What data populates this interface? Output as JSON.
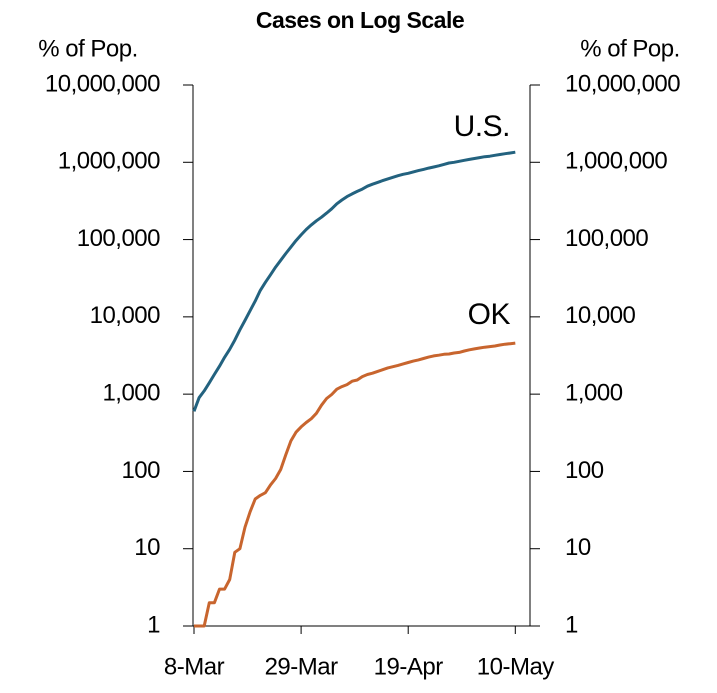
{
  "chart_data": {
    "type": "line",
    "title": "Cases on Log Scale",
    "y_label": "% of Pop.",
    "y2_label": "% of Pop.",
    "annotations": [
      "U.S.",
      "OK"
    ],
    "log_scale": true,
    "grid": false,
    "categories": [
      "8-Mar",
      null,
      null,
      null,
      null,
      null,
      null,
      null,
      null,
      null,
      null,
      null,
      null,
      null,
      null,
      null,
      null,
      null,
      null,
      null,
      null,
      "29-Mar",
      null,
      null,
      null,
      null,
      null,
      null,
      null,
      null,
      null,
      null,
      null,
      null,
      null,
      null,
      null,
      null,
      null,
      null,
      null,
      null,
      "19-Apr",
      null,
      null,
      null,
      null,
      null,
      null,
      null,
      null,
      null,
      null,
      null,
      null,
      null,
      null,
      null,
      null,
      null,
      null,
      null,
      null,
      "10-May"
    ],
    "series": [
      {
        "name": "U.S.",
        "color": "#23627f",
        "values": [
          600,
          900,
          1100,
          1400,
          1800,
          2300,
          3000,
          3800,
          5000,
          6800,
          9000,
          12000,
          16000,
          22000,
          28000,
          35000,
          44000,
          54000,
          66000,
          80000,
          97000,
          115000,
          135000,
          155000,
          175000,
          195000,
          220000,
          250000,
          290000,
          325000,
          360000,
          390000,
          420000,
          450000,
          490000,
          520000,
          550000,
          580000,
          610000,
          640000,
          670000,
          700000,
          720000,
          750000,
          780000,
          810000,
          840000,
          870000,
          900000,
          940000,
          980000,
          1000000,
          1030000,
          1060000,
          1090000,
          1120000,
          1150000,
          1180000,
          1200000,
          1230000,
          1260000,
          1290000,
          1320000,
          1350000
        ]
      },
      {
        "name": "OK",
        "color": "#c8652e",
        "values": [
          1,
          1,
          1,
          2,
          2,
          3,
          3,
          4,
          9,
          10,
          19,
          30,
          44,
          49,
          53,
          67,
          81,
          106,
          164,
          248,
          322,
          377,
          429,
          481,
          565,
          719,
          879,
          988,
          1159,
          1252,
          1327,
          1472,
          1524,
          1684,
          1794,
          1868,
          1970,
          2069,
          2184,
          2263,
          2357,
          2465,
          2570,
          2680,
          2770,
          2894,
          3017,
          3121,
          3193,
          3280,
          3310,
          3410,
          3473,
          3618,
          3748,
          3851,
          3954,
          4044,
          4127,
          4201,
          4330,
          4424,
          4490,
          4570
        ]
      }
    ],
    "ylim": [
      1,
      10000000
    ],
    "yticks": [
      1,
      10,
      100,
      {
        "value": 1000,
        "label": "1,000"
      },
      {
        "value": 10000,
        "label": "10,000"
      },
      {
        "value": 100000,
        "label": "100,000"
      },
      {
        "value": 1000000,
        "label": "1,000,000"
      },
      {
        "value": 10000000,
        "label": "10,000,000"
      }
    ],
    "y2lim": [
      1,
      10000000
    ],
    "y2ticks": [
      1,
      10,
      100,
      {
        "value": 1000,
        "label": "1,000"
      },
      {
        "value": 10000,
        "label": "10,000"
      },
      {
        "value": 100000,
        "label": "100,000"
      },
      {
        "value": 1000000,
        "label": "1,000,000"
      },
      {
        "value": 10000000,
        "label": "10,000,000"
      }
    ]
  }
}
